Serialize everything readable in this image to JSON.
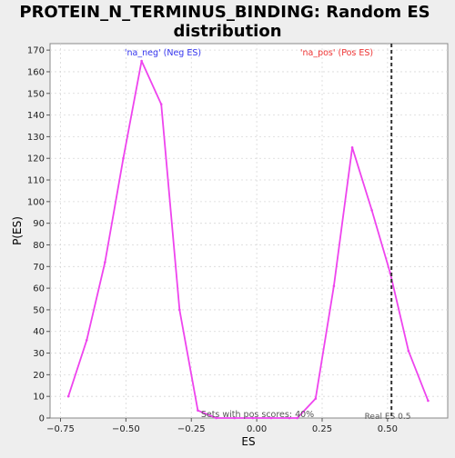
{
  "chart_data": {
    "type": "line",
    "title_line1": "PROTEIN_N_TERMINUS_BINDING: Random ES",
    "title_line2": "distribution",
    "xlabel": "ES",
    "ylabel": "P(ES)",
    "xlim": [
      -0.79,
      0.73
    ],
    "ylim": [
      0,
      173
    ],
    "x_ticks": [
      -0.75,
      -0.5,
      -0.25,
      0.0,
      0.25,
      0.5
    ],
    "x_tick_labels": [
      "−0.75",
      "−0.50",
      "−0.25",
      "0.00",
      "0.25",
      "0.50"
    ],
    "y_ticks": [
      0,
      10,
      20,
      30,
      40,
      50,
      60,
      70,
      80,
      90,
      100,
      110,
      120,
      130,
      140,
      150,
      160,
      170
    ],
    "grid": true,
    "series": [
      {
        "name": "",
        "color": "#ee44ee",
        "x": [
          -0.72,
          -0.65,
          -0.58,
          -0.51,
          -0.44,
          -0.365,
          -0.295,
          -0.225,
          -0.155,
          -0.085,
          -0.015,
          0.055,
          0.125,
          0.155,
          0.225,
          0.295,
          0.365,
          0.44,
          0.51,
          0.58,
          0.655
        ],
        "y": [
          10,
          36,
          72,
          120,
          165,
          145,
          50,
          3.5,
          0,
          0,
          0,
          0,
          0,
          0,
          9,
          61,
          125,
          96,
          67,
          31,
          8
        ]
      }
    ],
    "annotations": {
      "neg_label": "'na_neg' (Neg ES)",
      "neg_color": "#3333ee",
      "pos_label": "'na_pos' (Pos ES)",
      "pos_color": "#ee3333",
      "pos_scores_text": "Sets with pos scores: 40%",
      "real_es_text": "Real ES 0.5"
    },
    "real_es": 0.515
  }
}
